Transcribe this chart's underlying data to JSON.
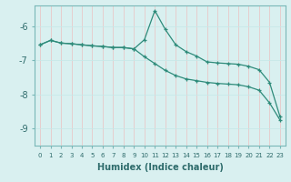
{
  "xlabel": "Humidex (Indice chaleur)",
  "bg_color": "#d9f0f0",
  "grid_color": "#c8e8e8",
  "line_color": "#2e8b7a",
  "xlim": [
    -0.5,
    23.5
  ],
  "ylim": [
    -9.5,
    -5.4
  ],
  "yticks": [
    -9,
    -8,
    -7,
    -6
  ],
  "xticks": [
    0,
    1,
    2,
    3,
    4,
    5,
    6,
    7,
    8,
    9,
    10,
    11,
    12,
    13,
    14,
    15,
    16,
    17,
    18,
    19,
    20,
    21,
    22,
    23
  ],
  "line1_x": [
    0,
    1,
    2,
    3,
    4,
    5,
    6,
    7,
    8,
    9,
    10,
    11,
    12,
    13,
    14,
    15,
    16,
    17,
    18,
    19,
    20,
    21,
    22,
    23
  ],
  "line1_y": [
    -6.55,
    -6.42,
    -6.5,
    -6.52,
    -6.55,
    -6.58,
    -6.6,
    -6.63,
    -6.63,
    -6.67,
    -6.4,
    -5.55,
    -6.1,
    -6.55,
    -6.75,
    -6.88,
    -7.05,
    -7.08,
    -7.1,
    -7.12,
    -7.18,
    -7.28,
    -7.65,
    -8.65
  ],
  "line2_x": [
    0,
    1,
    2,
    3,
    4,
    5,
    6,
    7,
    8,
    9,
    10,
    11,
    12,
    13,
    14,
    15,
    16,
    17,
    18,
    19,
    20,
    21,
    22,
    23
  ],
  "line2_y": [
    -6.55,
    -6.42,
    -6.5,
    -6.52,
    -6.55,
    -6.58,
    -6.6,
    -6.63,
    -6.63,
    -6.67,
    -6.9,
    -7.1,
    -7.3,
    -7.45,
    -7.55,
    -7.6,
    -7.65,
    -7.68,
    -7.7,
    -7.72,
    -7.78,
    -7.88,
    -8.25,
    -8.75
  ]
}
